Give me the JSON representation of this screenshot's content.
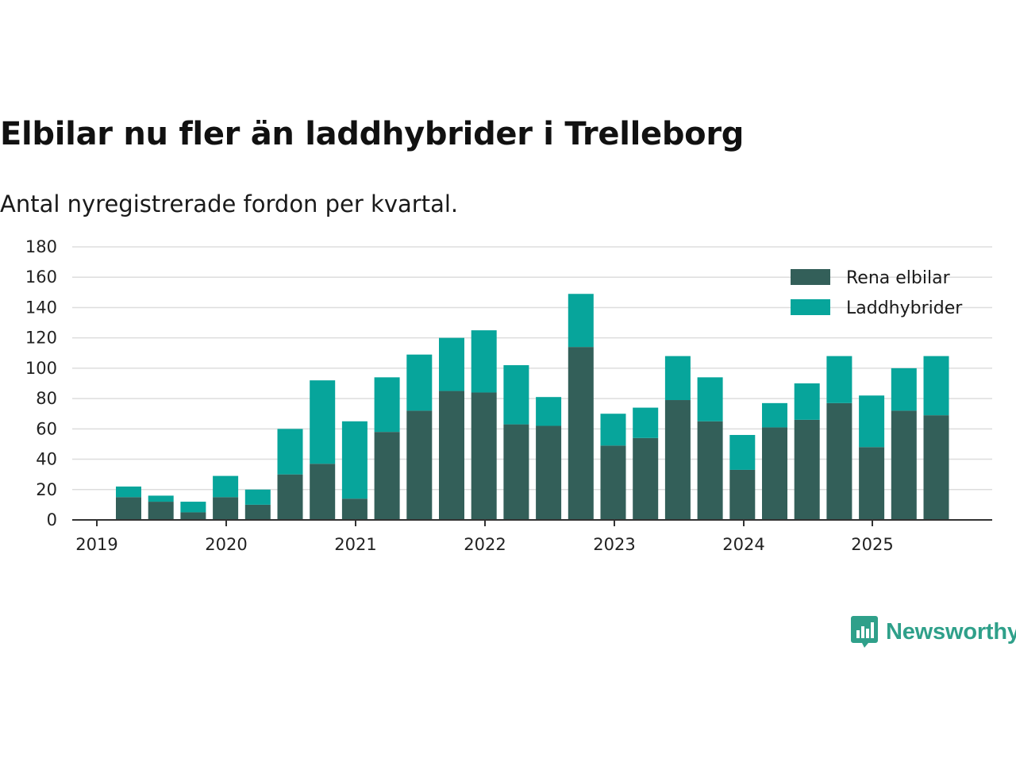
{
  "title": "Elbilar nu fler än laddhybrider i Trelleborg",
  "subtitle": "Antal nyregistrerade fordon per kvartal.",
  "brand": {
    "name": "Newsworthy",
    "icon": "newsworthy-logo-icon"
  },
  "colors": {
    "elbilar": "#335f59",
    "laddhybrider": "#07a59b",
    "grid": "#dddddd",
    "axis": "#333333"
  },
  "chart_data": {
    "type": "bar",
    "stacked": true,
    "title": "Elbilar nu fler än laddhybrider i Trelleborg",
    "subtitle": "Antal nyregistrerade fordon per kvartal.",
    "xlabel": "",
    "ylabel": "",
    "ylim": [
      0,
      180
    ],
    "yticks": [
      0,
      20,
      40,
      60,
      80,
      100,
      120,
      140,
      160,
      180
    ],
    "xticks": [
      "2019",
      "2020",
      "2021",
      "2022",
      "2023",
      "2024",
      "2025"
    ],
    "grid": true,
    "legend_position": "top-right",
    "categories": [
      "2019 Q2",
      "2019 Q3",
      "2019 Q4",
      "2020 Q1",
      "2020 Q2",
      "2020 Q3",
      "2020 Q4",
      "2021 Q1",
      "2021 Q2",
      "2021 Q3",
      "2021 Q4",
      "2022 Q1",
      "2022 Q2",
      "2022 Q3",
      "2022 Q4",
      "2023 Q1",
      "2023 Q2",
      "2023 Q3",
      "2023 Q4",
      "2024 Q1",
      "2024 Q2",
      "2024 Q3",
      "2024 Q4",
      "2025 Q1",
      "2025 Q2",
      "2025 Q3"
    ],
    "series": [
      {
        "name": "Rena elbilar",
        "values": [
          15,
          12,
          5,
          15,
          10,
          30,
          37,
          14,
          58,
          72,
          85,
          84,
          63,
          62,
          114,
          49,
          54,
          79,
          65,
          33,
          61,
          66,
          77,
          48,
          72,
          69
        ]
      },
      {
        "name": "Laddhybrider",
        "values": [
          7,
          4,
          7,
          14,
          10,
          30,
          55,
          51,
          36,
          37,
          35,
          41,
          39,
          19,
          35,
          21,
          20,
          29,
          29,
          23,
          16,
          24,
          31,
          34,
          28,
          39
        ]
      }
    ]
  }
}
